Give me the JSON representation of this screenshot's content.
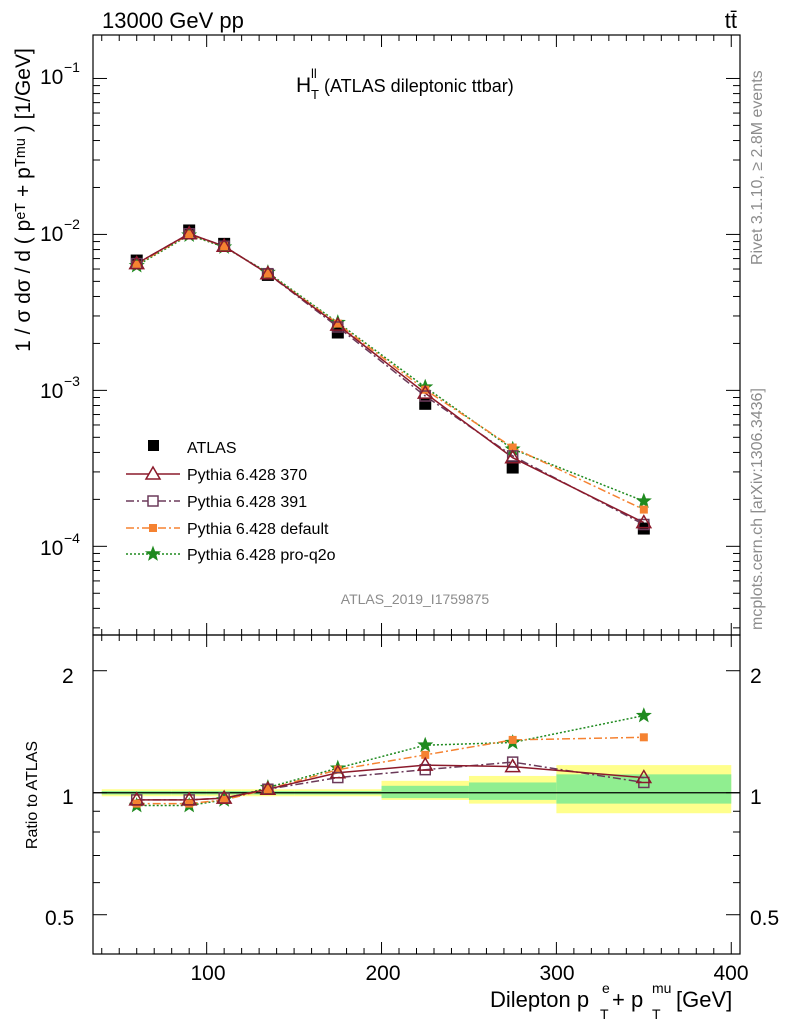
{
  "header": {
    "energy_label": "13000 GeV pp",
    "process_label": "tt̄"
  },
  "side": {
    "rivet_label": "Rivet 3.1.10, ≥ 2.8M events",
    "mcplots_label": "mcplots.cern.ch [arXiv:1306.3436]"
  },
  "main_panel": {
    "title_main": "H",
    "title_sup": "ll",
    "title_sub": "T",
    "title_rest": " (ATLAS dileptonic ttbar)",
    "analysis_label": "ATLAS_2019_I1759875",
    "ylabel": "1 / σ  dσ / d ( pᵉᵀ + pᵀᵐᵘ ) [1/GeV]",
    "ytick_labels": [
      "10",
      "10",
      "10",
      "10"
    ],
    "ytick_exponents": [
      "−1",
      "−2",
      "−3",
      "−4"
    ]
  },
  "ratio_panel": {
    "ylabel": "Ratio to ATLAS",
    "ytick_labels": [
      "2",
      "1",
      "0.5"
    ]
  },
  "xaxis": {
    "label_main": "Dilepton p",
    "label_sup1": "e",
    "label_sub1": "T",
    "label_mid": " + p",
    "label_sup2": "mu",
    "label_sub2": "T",
    "label_unit": " [GeV]",
    "tick_labels": [
      "100",
      "200",
      "300",
      "400"
    ]
  },
  "legend": {
    "items": [
      {
        "label": "ATLAS",
        "color": "#000000",
        "marker": "filled-square"
      },
      {
        "label": "Pythia 6.428 370",
        "color": "#8b1a2b",
        "marker": "open-triangle"
      },
      {
        "label": "Pythia 6.428 391",
        "color": "#6b3a5a",
        "marker": "open-square"
      },
      {
        "label": "Pythia 6.428 default",
        "color": "#f58231",
        "marker": "filled-square-small"
      },
      {
        "label": "Pythia 6.428 pro-q2o",
        "color": "#1f8a1f",
        "marker": "star"
      }
    ]
  },
  "chart_data": [
    {
      "type": "line",
      "panel": "main",
      "xlabel": "Dilepton p_T^e + p_T^mu [GeV]",
      "ylabel": "1 / σ dσ / d ( p_T^e + p_T^mu ) [1/GeV]",
      "yscale": "log",
      "xlim": [
        35,
        405
      ],
      "ylim": [
        2.7e-05,
        0.19
      ],
      "bins": [
        [
          40,
          80
        ],
        [
          80,
          100
        ],
        [
          100,
          120
        ],
        [
          120,
          150
        ],
        [
          150,
          200
        ],
        [
          200,
          250
        ],
        [
          250,
          300
        ],
        [
          300,
          400
        ]
      ],
      "x": [
        60,
        90,
        110,
        135,
        175,
        225,
        275,
        350
      ],
      "series": [
        {
          "name": "ATLAS",
          "color": "#000000",
          "values": [
            0.0068,
            0.0106,
            0.0087,
            0.0055,
            0.00235,
            0.00082,
            0.00032,
            0.00013
          ]
        },
        {
          "name": "Pythia 6.428 370",
          "color": "#8b1a2b",
          "values": [
            0.0065,
            0.0101,
            0.0084,
            0.0056,
            0.00262,
            0.00096,
            0.00037,
            0.000142
          ]
        },
        {
          "name": "Pythia 6.428 391",
          "color": "#6b3a5a",
          "values": [
            0.0065,
            0.0101,
            0.0084,
            0.0056,
            0.00255,
            0.00092,
            0.00038,
            0.000138
          ]
        },
        {
          "name": "Pythia 6.428 default",
          "color": "#f58231",
          "values": [
            0.0064,
            0.01,
            0.0084,
            0.0056,
            0.00268,
            0.00101,
            0.00043,
            0.000172
          ]
        },
        {
          "name": "Pythia 6.428 pro-q2o",
          "color": "#1f8a1f",
          "values": [
            0.0063,
            0.0099,
            0.0083,
            0.0057,
            0.00272,
            0.00105,
            0.00042,
            0.000195
          ]
        }
      ]
    },
    {
      "type": "line",
      "panel": "ratio",
      "ylabel": "Ratio to ATLAS",
      "yscale": "log",
      "xlim": [
        35,
        405
      ],
      "ylim": [
        0.4,
        2.45
      ],
      "bins": [
        [
          40,
          80
        ],
        [
          80,
          100
        ],
        [
          100,
          120
        ],
        [
          120,
          150
        ],
        [
          150,
          200
        ],
        [
          200,
          250
        ],
        [
          250,
          300
        ],
        [
          300,
          400
        ]
      ],
      "x": [
        60,
        90,
        110,
        135,
        175,
        225,
        275,
        350
      ],
      "reference": 1,
      "band_stat": [
        [
          0.99,
          1.01
        ],
        [
          0.99,
          1.01
        ],
        [
          0.99,
          1.01
        ],
        [
          0.99,
          1.01
        ],
        [
          0.99,
          1.01
        ],
        [
          0.97,
          1.04
        ],
        [
          0.96,
          1.06
        ],
        [
          0.94,
          1.11
        ]
      ],
      "band_total": [
        [
          0.98,
          1.02
        ],
        [
          0.98,
          1.02
        ],
        [
          0.98,
          1.02
        ],
        [
          0.98,
          1.02
        ],
        [
          0.98,
          1.02
        ],
        [
          0.96,
          1.07
        ],
        [
          0.94,
          1.1
        ],
        [
          0.89,
          1.17
        ]
      ],
      "series": [
        {
          "name": "Pythia 6.428 370",
          "values": [
            0.96,
            0.96,
            0.97,
            1.02,
            1.12,
            1.17,
            1.16,
            1.09
          ]
        },
        {
          "name": "Pythia 6.428 391",
          "values": [
            0.96,
            0.96,
            0.97,
            1.02,
            1.09,
            1.14,
            1.19,
            1.06
          ]
        },
        {
          "name": "Pythia 6.428 default",
          "values": [
            0.94,
            0.94,
            0.96,
            1.02,
            1.14,
            1.24,
            1.35,
            1.37
          ]
        },
        {
          "name": "Pythia 6.428 pro-q2o",
          "values": [
            0.93,
            0.93,
            0.96,
            1.03,
            1.15,
            1.31,
            1.33,
            1.55
          ]
        }
      ]
    }
  ]
}
